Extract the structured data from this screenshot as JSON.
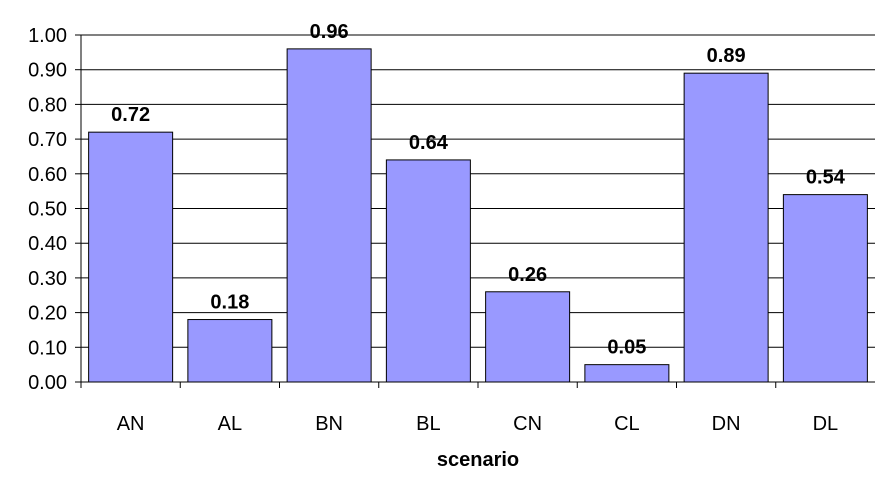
{
  "chart_data": {
    "type": "bar",
    "categories": [
      "AN",
      "AL",
      "BN",
      "BL",
      "CN",
      "CL",
      "DN",
      "DL"
    ],
    "values": [
      0.72,
      0.18,
      0.96,
      0.64,
      0.26,
      0.05,
      0.89,
      0.54
    ],
    "data_labels": [
      "0.72",
      "0.18",
      "0.96",
      "0.64",
      "0.26",
      "0.05",
      "0.89",
      "0.54"
    ],
    "title": "",
    "xlabel": "scenario",
    "ylabel": "",
    "ylim": [
      0,
      1
    ],
    "yticks": [
      "0.00",
      "0.10",
      "0.20",
      "0.30",
      "0.40",
      "0.50",
      "0.60",
      "0.70",
      "0.80",
      "0.90",
      "1.00"
    ],
    "ytick_values": [
      0,
      0.1,
      0.2,
      0.3,
      0.4,
      0.5,
      0.6,
      0.7,
      0.8,
      0.9,
      1.0
    ],
    "grid": true,
    "legend": "none",
    "colors": {
      "bar_fill": "#9999ff",
      "bar_stroke": "#000000",
      "grid": "#000000",
      "axis": "#000000"
    }
  }
}
